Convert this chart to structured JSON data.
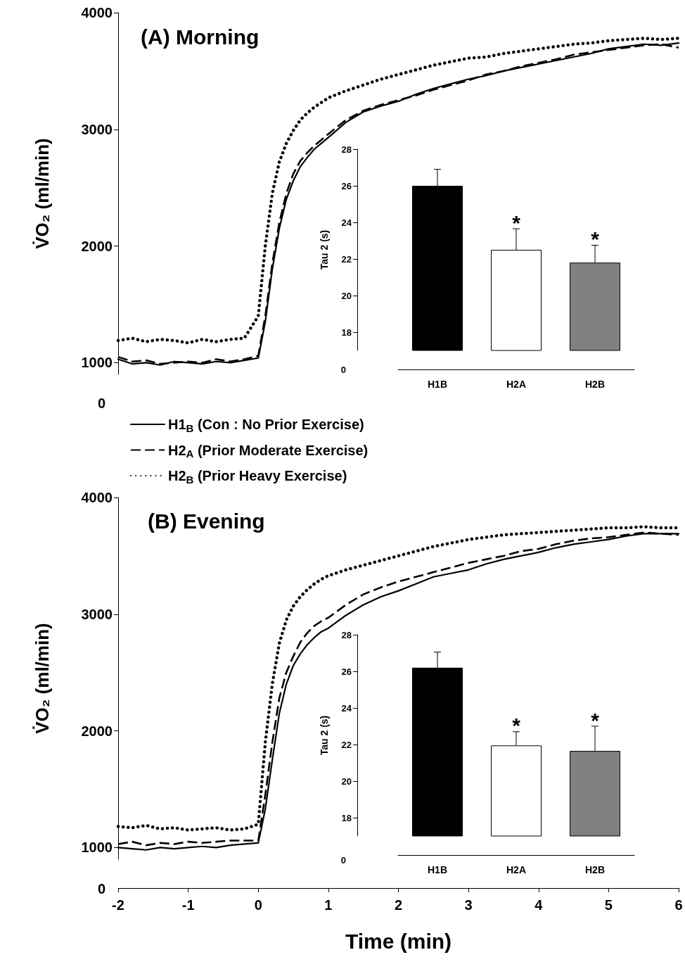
{
  "chart_data": [
    {
      "type": "line",
      "title": "(A) Morning",
      "ylabel": "V̇O₂ (ml/min)",
      "x": [
        -2,
        -1.8,
        -1.6,
        -1.4,
        -1.2,
        -1,
        -0.8,
        -0.6,
        -0.4,
        -0.2,
        0,
        0.1,
        0.2,
        0.3,
        0.4,
        0.5,
        0.6,
        0.7,
        0.8,
        0.9,
        1,
        1.25,
        1.5,
        1.75,
        2,
        2.25,
        2.5,
        2.75,
        3,
        3.25,
        3.5,
        3.75,
        4,
        4.25,
        4.5,
        4.75,
        5,
        5.25,
        5.5,
        5.75,
        6
      ],
      "series": [
        {
          "name": "H1$_{B}$ (Con : No Prior Exercise)",
          "color": "#000000",
          "line_style": "solid",
          "values": [
            1030,
            990,
            1000,
            980,
            1010,
            1000,
            990,
            1010,
            1000,
            1020,
            1040,
            1350,
            1800,
            2150,
            2400,
            2560,
            2680,
            2760,
            2830,
            2880,
            2930,
            3060,
            3150,
            3200,
            3240,
            3300,
            3350,
            3390,
            3430,
            3460,
            3500,
            3530,
            3560,
            3590,
            3620,
            3650,
            3690,
            3710,
            3730,
            3720,
            3740
          ]
        },
        {
          "name": "H2$_{A}$ (Prior Moderate Exercise)",
          "color": "#000000",
          "line_style": "dashed",
          "values": [
            1050,
            1010,
            1020,
            990,
            1000,
            1010,
            1000,
            1030,
            1010,
            1030,
            1060,
            1400,
            1850,
            2200,
            2450,
            2620,
            2730,
            2800,
            2860,
            2910,
            2960,
            3080,
            3160,
            3210,
            3250,
            3290,
            3340,
            3380,
            3420,
            3470,
            3500,
            3540,
            3570,
            3600,
            3640,
            3660,
            3680,
            3700,
            3720,
            3730,
            3700
          ]
        },
        {
          "name": "H2$_{B}$ (Prior Heavy Exercise)",
          "color": "#000000",
          "line_style": "dotted",
          "values": [
            1190,
            1210,
            1180,
            1200,
            1190,
            1170,
            1200,
            1180,
            1200,
            1210,
            1400,
            2000,
            2450,
            2720,
            2880,
            2990,
            3080,
            3140,
            3190,
            3230,
            3270,
            3330,
            3380,
            3430,
            3470,
            3510,
            3550,
            3580,
            3610,
            3620,
            3650,
            3670,
            3690,
            3710,
            3730,
            3740,
            3760,
            3770,
            3780,
            3770,
            3780
          ]
        }
      ],
      "xlim": [
        -2,
        6
      ],
      "xticks": [
        -2,
        -1,
        0,
        1,
        2,
        3,
        4,
        5,
        6
      ],
      "ylim": [
        900,
        4000
      ],
      "yticks": [
        1000,
        2000,
        3000,
        4000
      ],
      "tick_labels": "y",
      "legend": "bottom",
      "annotations": [
        "0"
      ]
    },
    {
      "type": "bar",
      "ylabel": "Tau 2 (s)",
      "categories": [
        "H1B",
        "H2A",
        "H2B"
      ],
      "values": [
        26,
        22.5,
        21.8
      ],
      "colors": [
        "#000000",
        "#ffffff",
        "#808080"
      ],
      "errors": [
        [
          26,
          26.9
        ],
        [
          22.5,
          23.65
        ],
        [
          21.8,
          22.75
        ]
      ],
      "ylim": [
        17,
        28
      ],
      "yticks": [
        18,
        20,
        22,
        24,
        26,
        28
      ],
      "annotations": [
        "0",
        {
          "text": "*",
          "x": "H2A",
          "y": 23.65
        },
        {
          "text": "*",
          "x": "H2B",
          "y": 22.75
        }
      ]
    },
    {
      "type": "line",
      "title": "(B) Evening",
      "ylabel": "V̇O₂ (ml/min)",
      "xlabel": "Time (min)",
      "x": [
        -2,
        -1.8,
        -1.6,
        -1.4,
        -1.2,
        -1,
        -0.8,
        -0.6,
        -0.4,
        -0.2,
        0,
        0.1,
        0.2,
        0.3,
        0.4,
        0.5,
        0.6,
        0.7,
        0.8,
        0.9,
        1,
        1.25,
        1.5,
        1.75,
        2,
        2.25,
        2.5,
        2.75,
        3,
        3.25,
        3.5,
        3.75,
        4,
        4.25,
        4.5,
        4.75,
        5,
        5.25,
        5.5,
        5.75,
        6
      ],
      "series": [
        {
          "color": "#000000",
          "line_style": "solid",
          "values": [
            1000,
            990,
            980,
            1000,
            990,
            1000,
            1010,
            1000,
            1020,
            1030,
            1040,
            1330,
            1750,
            2150,
            2400,
            2560,
            2660,
            2740,
            2800,
            2850,
            2880,
            2990,
            3080,
            3150,
            3200,
            3260,
            3320,
            3350,
            3380,
            3430,
            3470,
            3500,
            3530,
            3570,
            3600,
            3620,
            3640,
            3670,
            3690,
            3690,
            3690
          ]
        },
        {
          "color": "#000000",
          "line_style": "dashed",
          "values": [
            1030,
            1050,
            1020,
            1040,
            1030,
            1050,
            1040,
            1050,
            1060,
            1060,
            1060,
            1450,
            1900,
            2280,
            2500,
            2640,
            2760,
            2840,
            2900,
            2940,
            2970,
            3080,
            3170,
            3230,
            3280,
            3320,
            3360,
            3400,
            3440,
            3470,
            3500,
            3540,
            3560,
            3600,
            3630,
            3650,
            3660,
            3680,
            3700,
            3690,
            3680
          ]
        },
        {
          "color": "#000000",
          "line_style": "dotted",
          "values": [
            1180,
            1170,
            1190,
            1160,
            1170,
            1150,
            1160,
            1170,
            1150,
            1160,
            1200,
            1900,
            2400,
            2750,
            2950,
            3070,
            3150,
            3210,
            3260,
            3300,
            3330,
            3380,
            3420,
            3460,
            3500,
            3540,
            3580,
            3610,
            3640,
            3660,
            3680,
            3690,
            3700,
            3710,
            3720,
            3730,
            3740,
            3740,
            3750,
            3740,
            3740
          ]
        }
      ],
      "xlim": [
        -2,
        6
      ],
      "xticks": [
        -2,
        -1,
        0,
        1,
        2,
        3,
        4,
        5,
        6
      ],
      "ylim": [
        900,
        4000
      ],
      "yticks": [
        1000,
        2000,
        3000,
        4000
      ],
      "annotations": [
        "0"
      ]
    },
    {
      "type": "bar",
      "ylabel": "Tau 2 (s)",
      "categories": [
        "H1B",
        "H2A",
        "H2B"
      ],
      "values": [
        26.2,
        21.95,
        21.65
      ],
      "colors": [
        "#000000",
        "#ffffff",
        "#808080"
      ],
      "errors": [
        [
          26.2,
          27.05
        ],
        [
          21.95,
          22.7
        ],
        [
          21.65,
          23.0
        ]
      ],
      "ylim": [
        17,
        28
      ],
      "yticks": [
        18,
        20,
        22,
        24,
        26,
        28
      ],
      "annotations": [
        "0",
        {
          "text": "*",
          "x": "H2A",
          "y": 22.7
        },
        {
          "text": "*",
          "x": "H2B",
          "y": 23.0
        }
      ]
    }
  ]
}
